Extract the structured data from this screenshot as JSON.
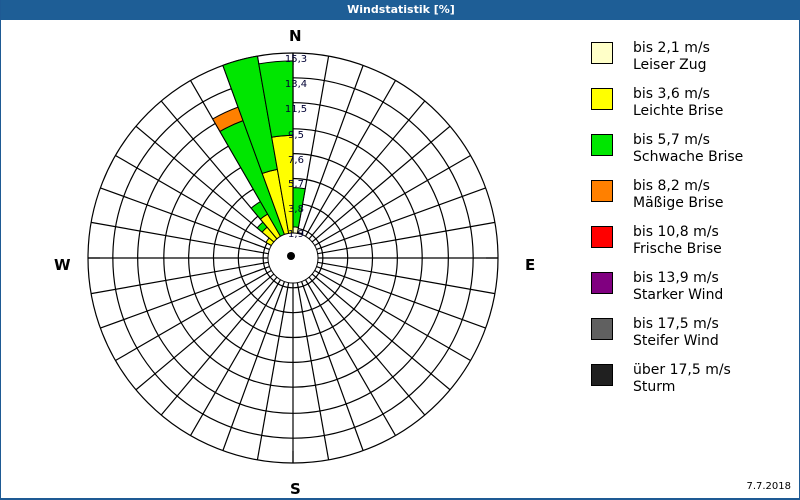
{
  "window": {
    "title": "Windstatistik [%]",
    "date": "7.7.2018"
  },
  "compass": {
    "n": "N",
    "e": "E",
    "s": "S",
    "w": "W"
  },
  "legend": [
    {
      "range": "bis 2,1 m/s",
      "name": "Leiser Zug",
      "color": "#ffffc8"
    },
    {
      "range": "bis 3,6 m/s",
      "name": "Leichte Brise",
      "color": "#ffff00"
    },
    {
      "range": "bis 5,7 m/s",
      "name": "Schwache Brise",
      "color": "#00e600"
    },
    {
      "range": "bis 8,2 m/s",
      "name": "Mäßige Brise",
      "color": "#ff8000"
    },
    {
      "range": "bis 10,8 m/s",
      "name": "Frische Brise",
      "color": "#ff0000"
    },
    {
      "range": "bis 13,9 m/s",
      "name": "Starker Wind",
      "color": "#800080"
    },
    {
      "range": "bis 17,5 m/s",
      "name": "Steifer Wind",
      "color": "#606060"
    },
    {
      "range": "über 17,5 m/s",
      "name": "Sturm",
      "color": "#202020"
    }
  ],
  "chart_data": {
    "type": "wind-rose",
    "title": "Windstatistik [%]",
    "unit": "%",
    "ring_labels": [
      "1,9",
      "3,8",
      "5,7",
      "7,6",
      "9,5",
      "11,5",
      "13,4",
      "15,3"
    ],
    "ring_values": [
      1.9,
      3.8,
      5.7,
      7.6,
      9.5,
      11.5,
      13.4,
      15.3
    ],
    "rmax": 15.3,
    "sector_width_deg": 10,
    "grid": true,
    "legend_position": "right",
    "bands": [
      "bis 2,1 m/s",
      "bis 3,6 m/s",
      "bis 5,7 m/s",
      "bis 8,2 m/s",
      "bis 10,8 m/s",
      "bis 13,9 m/s",
      "bis 17,5 m/s",
      "über 17,5 m/s"
    ],
    "sectors": [
      {
        "from": 0,
        "to": 10,
        "cumulative": [
          2.0,
          2.0,
          5.0
        ]
      },
      {
        "from": 10,
        "to": 20,
        "cumulative": [
          0.8,
          0.8,
          1.6
        ]
      },
      {
        "from": 280,
        "to": 290,
        "cumulative": [
          0.3,
          1.0
        ]
      },
      {
        "from": 290,
        "to": 300,
        "cumulative": [
          0.3,
          1.5
        ]
      },
      {
        "from": 300,
        "to": 310,
        "cumulative": [
          0.3,
          2.0
        ]
      },
      {
        "from": 310,
        "to": 320,
        "cumulative": [
          0.3,
          2.7,
          3.2
        ]
      },
      {
        "from": 320,
        "to": 330,
        "cumulative": [
          0.3,
          3.5,
          4.6
        ]
      },
      {
        "from": 330,
        "to": 340,
        "cumulative": [
          0.3,
          1.0,
          10.8,
          11.9
        ]
      },
      {
        "from": 340,
        "to": 350,
        "cumulative": [
          0.3,
          6.5,
          15.3
        ]
      },
      {
        "from": 350,
        "to": 360,
        "cumulative": [
          0.3,
          9.0,
          14.7
        ]
      }
    ]
  }
}
